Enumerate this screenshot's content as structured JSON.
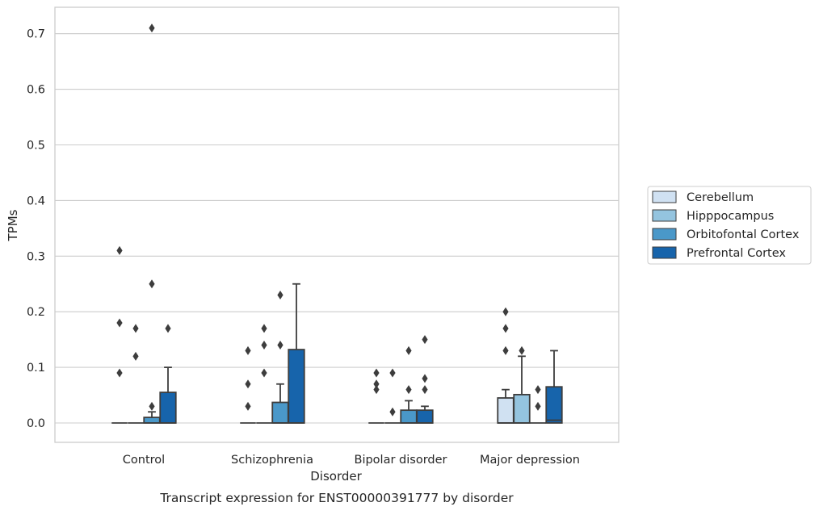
{
  "chart_data": {
    "type": "boxplot",
    "caption": "Transcript expression for ENST00000391777 by disorder",
    "xlabel": "Disorder",
    "ylabel": "TPMs",
    "ylim": [
      -0.035,
      0.745
    ],
    "yticks": [
      0.0,
      0.1,
      0.2,
      0.3,
      0.4,
      0.5,
      0.6,
      0.7
    ],
    "ytick_labels": [
      "0.0",
      "0.1",
      "0.2",
      "0.3",
      "0.4",
      "0.5",
      "0.6",
      "0.7"
    ],
    "grid": true,
    "legend_position": "right",
    "categories": [
      "Control",
      "Schizophrenia",
      "Bipolar disorder",
      "Major depression"
    ],
    "series": [
      {
        "name": "Cerebellum",
        "color": "#d0e1f2",
        "boxes": [
          {
            "q1": 0.0,
            "median": 0.0,
            "q3": 0.0,
            "whisker_low": 0.0,
            "whisker_high": 0.0,
            "outliers": [
              0.09,
              0.18,
              0.31
            ]
          },
          {
            "q1": 0.0,
            "median": 0.0,
            "q3": 0.0,
            "whisker_low": 0.0,
            "whisker_high": 0.0,
            "outliers": [
              0.03,
              0.07,
              0.13
            ]
          },
          {
            "q1": 0.0,
            "median": 0.0,
            "q3": 0.0,
            "whisker_low": 0.0,
            "whisker_high": 0.0,
            "outliers": [
              0.06,
              0.07,
              0.09
            ]
          },
          {
            "q1": 0.0,
            "median": 0.0,
            "q3": 0.045,
            "whisker_low": 0.0,
            "whisker_high": 0.06,
            "outliers": [
              0.13,
              0.17,
              0.2
            ]
          }
        ]
      },
      {
        "name": "Hipppocampus",
        "color": "#94c4df",
        "boxes": [
          {
            "q1": 0.0,
            "median": 0.0,
            "q3": 0.0,
            "whisker_low": 0.0,
            "whisker_high": 0.0,
            "outliers": [
              0.12,
              0.17
            ]
          },
          {
            "q1": 0.0,
            "median": 0.0,
            "q3": 0.0,
            "whisker_low": 0.0,
            "whisker_high": 0.0,
            "outliers": [
              0.09,
              0.14,
              0.17
            ]
          },
          {
            "q1": 0.0,
            "median": 0.0,
            "q3": 0.0,
            "whisker_low": 0.0,
            "whisker_high": 0.0,
            "outliers": [
              0.02,
              0.09
            ]
          },
          {
            "q1": 0.0,
            "median": 0.0,
            "q3": 0.051,
            "whisker_low": 0.0,
            "whisker_high": 0.12,
            "outliers": [
              0.13
            ]
          }
        ]
      },
      {
        "name": "Orbitofontal Cortex",
        "color": "#4a98c9",
        "boxes": [
          {
            "q1": 0.0,
            "median": 0.0,
            "q3": 0.01,
            "whisker_low": 0.0,
            "whisker_high": 0.02,
            "outliers": [
              0.03,
              0.25,
              0.71
            ]
          },
          {
            "q1": 0.0,
            "median": 0.0,
            "q3": 0.037,
            "whisker_low": 0.0,
            "whisker_high": 0.07,
            "outliers": [
              0.14,
              0.23
            ]
          },
          {
            "q1": 0.0,
            "median": 0.0,
            "q3": 0.023,
            "whisker_low": 0.0,
            "whisker_high": 0.04,
            "outliers": [
              0.06,
              0.13
            ]
          },
          {
            "q1": 0.0,
            "median": 0.0,
            "q3": 0.0,
            "whisker_low": 0.0,
            "whisker_high": 0.0,
            "outliers": [
              0.03,
              0.06
            ]
          }
        ]
      },
      {
        "name": "Prefrontal Cortex",
        "color": "#1764ab",
        "boxes": [
          {
            "q1": 0.0,
            "median": 0.0,
            "q3": 0.055,
            "whisker_low": 0.0,
            "whisker_high": 0.1,
            "outliers": [
              0.17
            ]
          },
          {
            "q1": 0.0,
            "median": 0.0,
            "q3": 0.132,
            "whisker_low": 0.0,
            "whisker_high": 0.25,
            "outliers": []
          },
          {
            "q1": 0.0,
            "median": 0.0,
            "q3": 0.023,
            "whisker_low": 0.0,
            "whisker_high": 0.03,
            "outliers": [
              0.06,
              0.08,
              0.15
            ]
          },
          {
            "q1": 0.0,
            "median": 0.005,
            "q3": 0.065,
            "whisker_low": 0.0,
            "whisker_high": 0.13,
            "outliers": []
          }
        ]
      }
    ]
  }
}
